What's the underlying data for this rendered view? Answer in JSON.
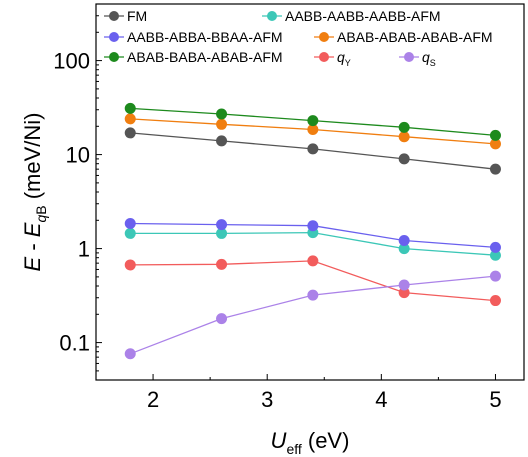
{
  "chart_data": {
    "type": "line",
    "y_scale": "log",
    "xlim": [
      1.5,
      5.25
    ],
    "ylim": [
      0.04,
      400
    ],
    "xticks": [
      "2",
      "3",
      "4",
      "5"
    ],
    "yticks": [
      "0.1",
      "1",
      "10",
      "100"
    ],
    "xlabel": {
      "main": "U",
      "sub": "eff",
      "rest": " (eV)"
    },
    "ylabel": {
      "main": "E - E",
      "sub": "qB",
      "rest": " (meV/Ni)"
    },
    "x": [
      1.8,
      2.6,
      3.4,
      4.2,
      5.0
    ],
    "series": [
      {
        "name": "FM",
        "color": "#555555",
        "values": [
          17,
          14,
          11.5,
          9,
          7
        ]
      },
      {
        "name": "AABB-AABB-AABB-AFM",
        "color": "#3cc7b7",
        "values": [
          1.45,
          1.45,
          1.48,
          1.0,
          0.85
        ]
      },
      {
        "name": "AABB-ABBA-BBAA-AFM",
        "color": "#6a60ee",
        "values": [
          1.85,
          1.8,
          1.75,
          1.22,
          1.03
        ]
      },
      {
        "name": "ABAB-ABAB-ABAB-AFM",
        "color": "#f07e10",
        "values": [
          24,
          21,
          18.5,
          15.5,
          13
        ]
      },
      {
        "name": "ABAB-BABA-ABAB-AFM",
        "color": "#1d8a1d",
        "values": [
          31,
          27,
          23,
          19.5,
          16
        ]
      },
      {
        "name": "q",
        "sub": "Y",
        "color": "#f25c5c",
        "values": [
          0.67,
          0.68,
          0.74,
          0.34,
          0.28
        ]
      },
      {
        "name": "q",
        "sub": "S",
        "color": "#ab82e8",
        "values": [
          0.076,
          0.18,
          0.32,
          0.41,
          0.51
        ]
      }
    ],
    "legend": "top"
  }
}
